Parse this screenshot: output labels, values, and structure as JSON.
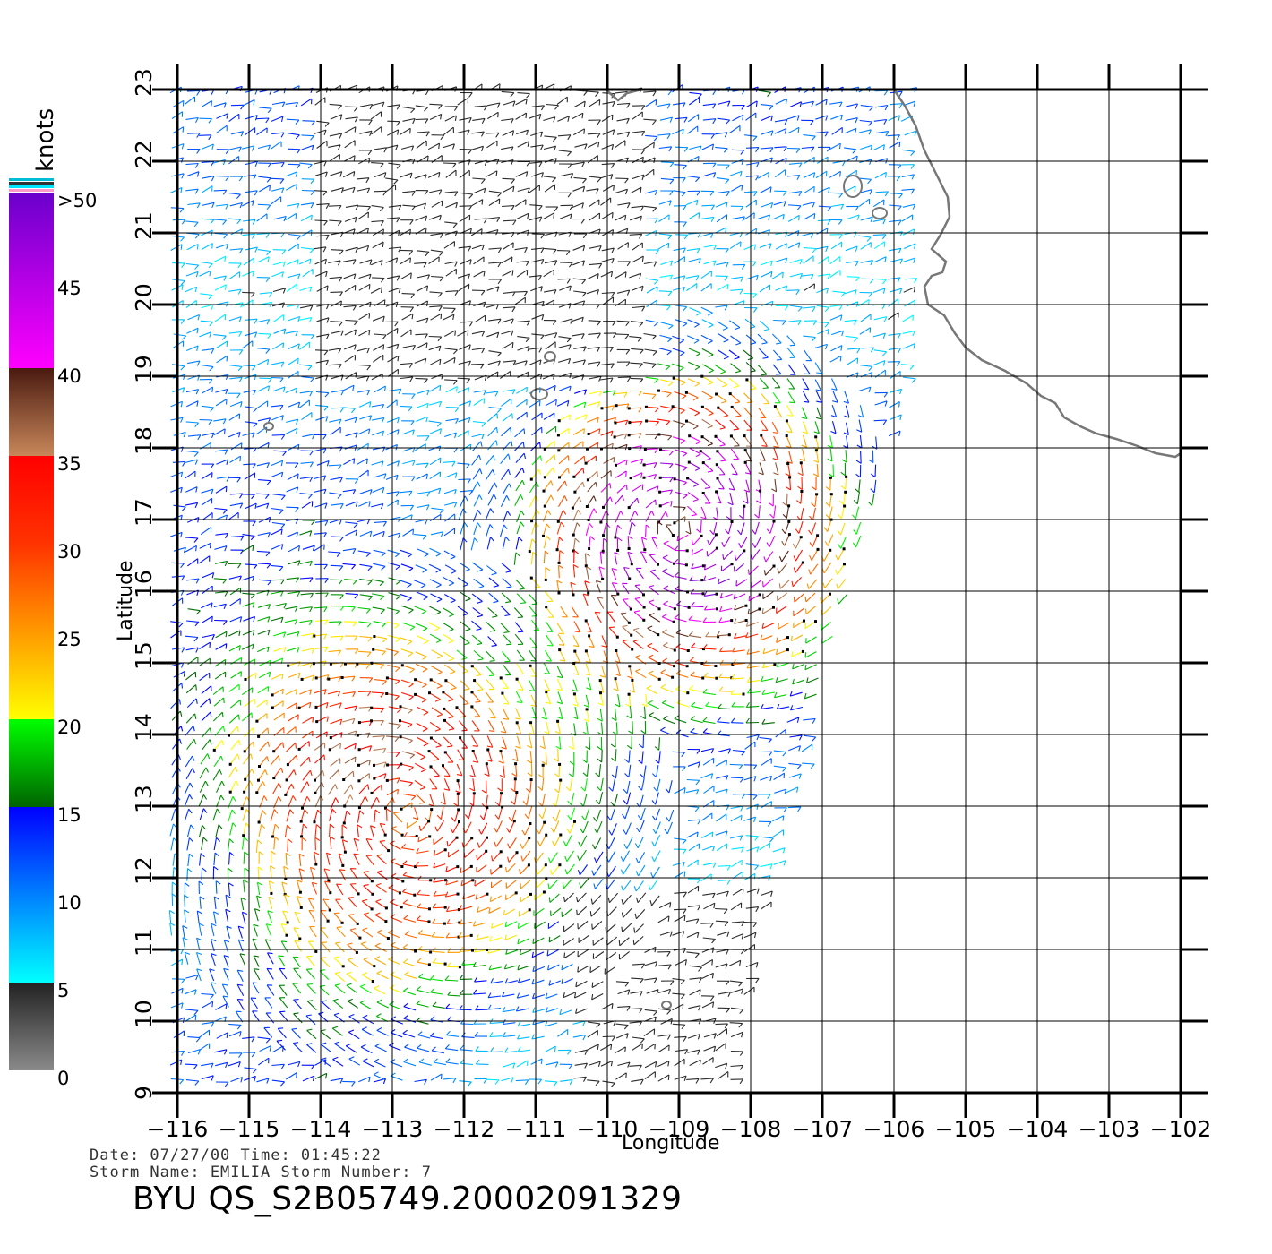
{
  "map": {
    "x_axis_label": "Longitude",
    "y_axis_label": "Latitude",
    "lon_ticks": [
      "−116",
      "−115",
      "−114",
      "−113",
      "−112",
      "−111",
      "−110",
      "−109",
      "−108",
      "−107",
      "−106",
      "−105",
      "−104",
      "−103",
      "−102"
    ],
    "lat_ticks": [
      "9",
      "10",
      "11",
      "12",
      "13",
      "14",
      "15",
      "16",
      "17",
      "18",
      "19",
      "20",
      "21",
      "22",
      "23"
    ],
    "lon_range": [
      -116,
      -102
    ],
    "lat_range": [
      9,
      23
    ],
    "land_outline_color": "#777777",
    "grid_color": "#000000"
  },
  "colorbar": {
    "unit": "knots",
    "labels": [
      ">50",
      "45",
      "40",
      "35",
      "30",
      "25",
      "20",
      "15",
      "10",
      "5",
      "0"
    ],
    "stops": [
      {
        "speed": 0,
        "color": "#8a8a8a"
      },
      {
        "speed": 5,
        "color": "#222222"
      },
      {
        "speed": 5,
        "color": "#00ffff"
      },
      {
        "speed": 15,
        "color": "#0000ff"
      },
      {
        "speed": 15,
        "color": "#006400"
      },
      {
        "speed": 20,
        "color": "#00ff00"
      },
      {
        "speed": 20,
        "color": "#ffff00"
      },
      {
        "speed": 25,
        "color": "#ff9900"
      },
      {
        "speed": 30,
        "color": "#ff3300"
      },
      {
        "speed": 35,
        "color": "#ff0000"
      },
      {
        "speed": 35,
        "color": "#c8875a"
      },
      {
        "speed": 40,
        "color": "#4a1a10"
      },
      {
        "speed": 40,
        "color": "#ff00ff"
      },
      {
        "speed": 50,
        "color": "#6a00cc"
      }
    ]
  },
  "storm_centers": [
    {
      "name": "center-north",
      "lon": -109.0,
      "lat": 16.9
    },
    {
      "name": "center-south",
      "lon": -112.8,
      "lat": 12.9
    }
  ],
  "info": {
    "date_line": "Date: 07/27/00   Time: 01:45:22",
    "storm_line": "Storm  Name: EMILIA   Storm  Number: 7",
    "file_title": "BYU  QS_S2B05749.20002091329"
  }
}
